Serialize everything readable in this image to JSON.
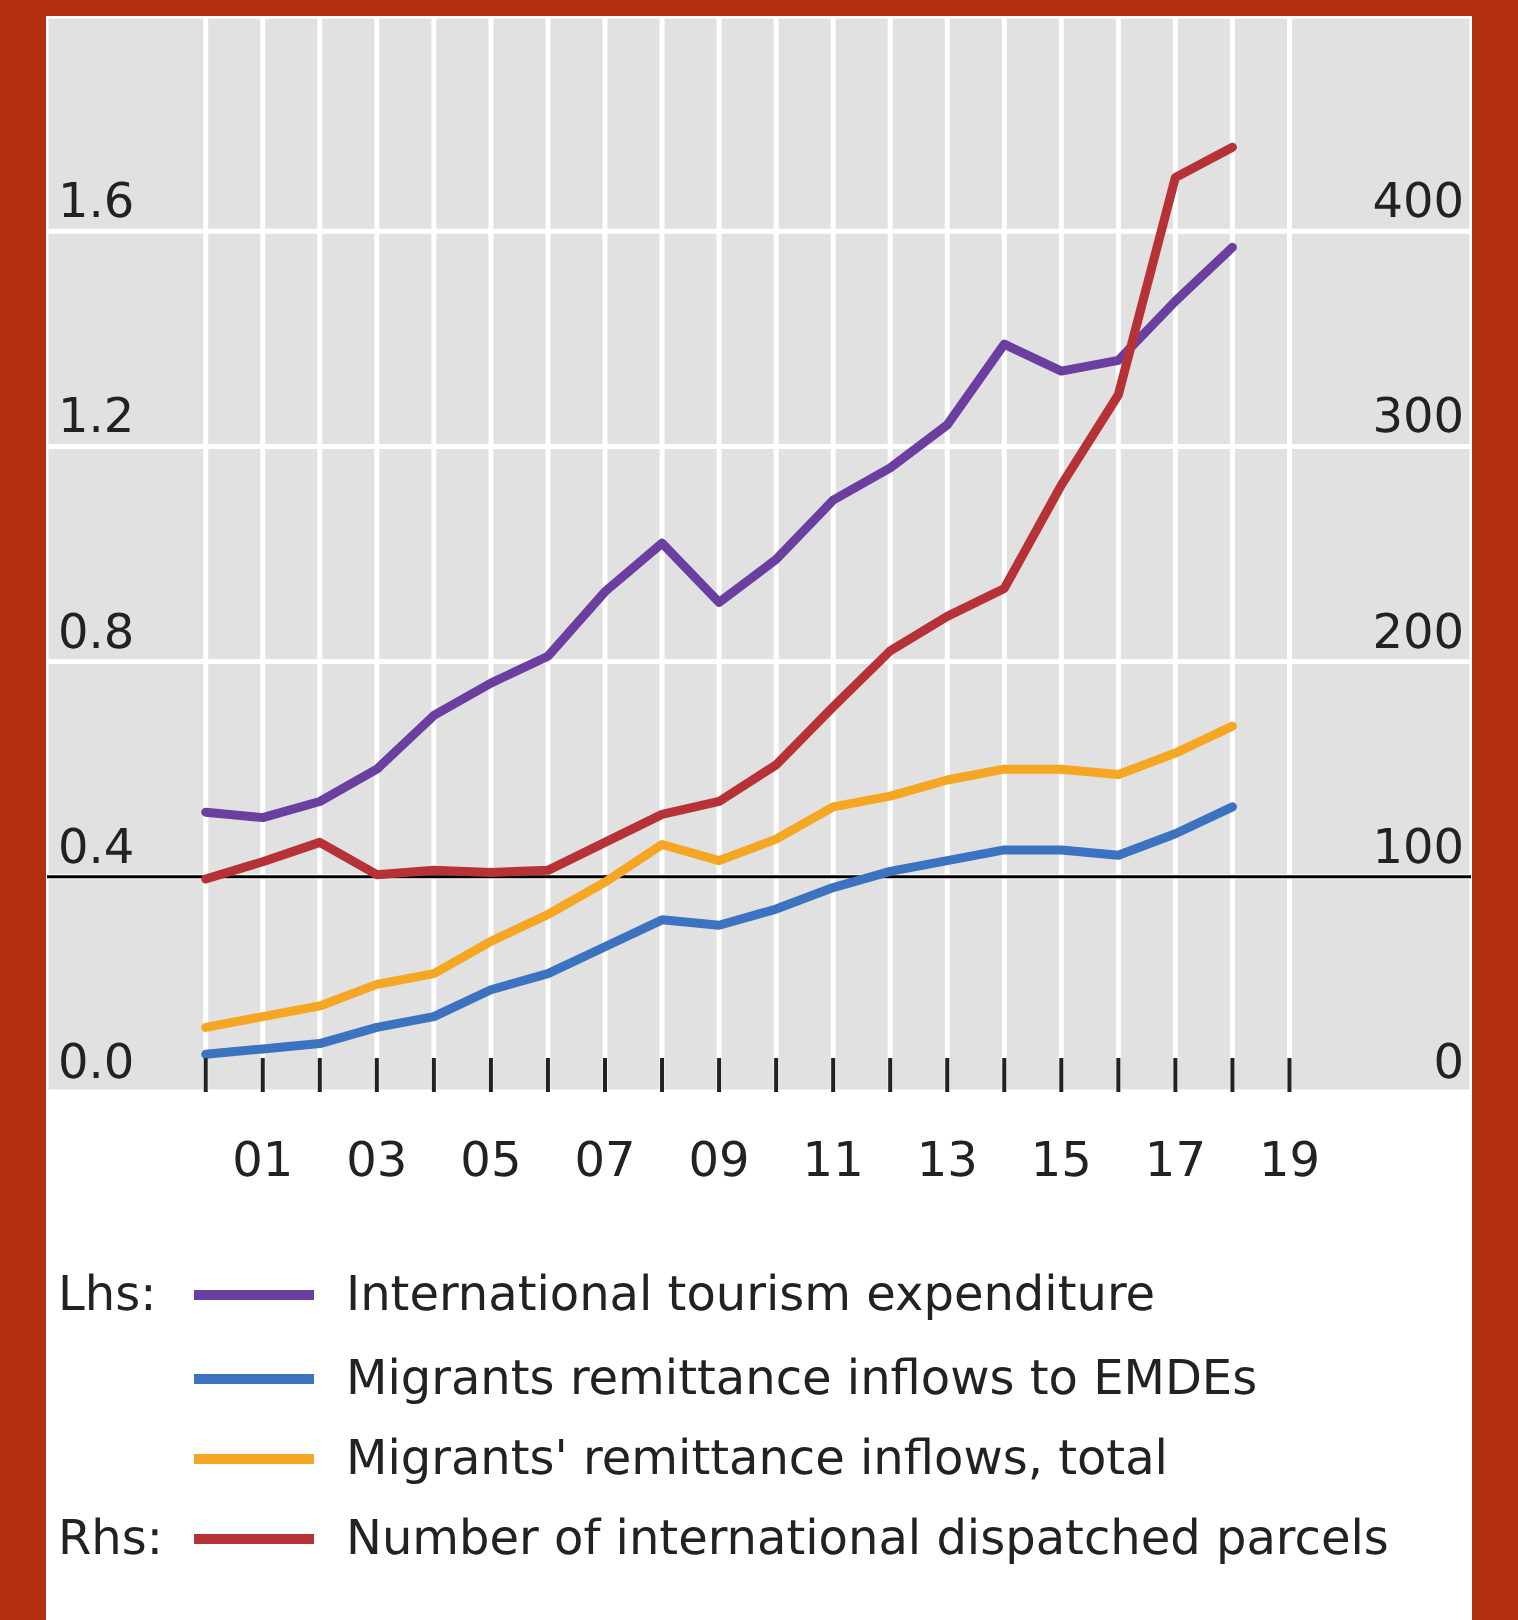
{
  "chart_data": {
    "type": "line",
    "x": [
      2000,
      2001,
      2002,
      2003,
      2004,
      2005,
      2006,
      2007,
      2008,
      2009,
      2010,
      2011,
      2012,
      2013,
      2014,
      2015,
      2016,
      2017,
      2018
    ],
    "xlim": [
      1997.2,
      2022.2
    ],
    "xticks": [
      {
        "value": 2000,
        "label": null
      },
      {
        "value": 2001,
        "label": "01"
      },
      {
        "value": 2002,
        "label": null
      },
      {
        "value": 2003,
        "label": "03"
      },
      {
        "value": 2004,
        "label": null
      },
      {
        "value": 2005,
        "label": "05"
      },
      {
        "value": 2006,
        "label": null
      },
      {
        "value": 2007,
        "label": "07"
      },
      {
        "value": 2008,
        "label": null
      },
      {
        "value": 2009,
        "label": "09"
      },
      {
        "value": 2010,
        "label": null
      },
      {
        "value": 2011,
        "label": "11"
      },
      {
        "value": 2012,
        "label": null
      },
      {
        "value": 2013,
        "label": "13"
      },
      {
        "value": 2014,
        "label": null
      },
      {
        "value": 2015,
        "label": "15"
      },
      {
        "value": 2016,
        "label": null
      },
      {
        "value": 2017,
        "label": "17"
      },
      {
        "value": 2018,
        "label": null
      },
      {
        "value": 2019,
        "label": "19"
      }
    ],
    "ylim": [
      0,
      2
    ],
    "yticks": [
      {
        "value": 0,
        "label": "0.0"
      },
      {
        "value": 0.4,
        "label": "0.4"
      },
      {
        "value": 0.8,
        "label": "0.8"
      },
      {
        "value": 1.2,
        "label": "1.2"
      },
      {
        "value": 1.6,
        "label": "1.6"
      }
    ],
    "y2lim": [
      0,
      500
    ],
    "y2ticks": [
      0,
      100,
      200,
      300,
      400
    ],
    "grid": true,
    "legend": "bottom",
    "line_style": "solid",
    "ref_lines": [
      {
        "axis": "y2",
        "value": 100,
        "color": "#000000"
      }
    ],
    "annotations": [
      "Lhs:",
      "Rhs:"
    ],
    "series": [
      {
        "name": "International tourism expenditure",
        "color": "#6b3fa0",
        "axis": "y",
        "values": [
          0.52,
          0.51,
          0.54,
          0.6,
          0.7,
          0.76,
          0.81,
          0.93,
          1.02,
          0.91,
          0.99,
          1.1,
          1.16,
          1.24,
          1.39,
          1.34,
          1.36,
          1.47,
          1.57
        ]
      },
      {
        "name": "Migrants remittance inflows to EMDEs",
        "color": "#3b73c0",
        "axis": "y",
        "values": [
          0.07,
          0.08,
          0.09,
          0.12,
          0.14,
          0.19,
          0.22,
          0.27,
          0.32,
          0.31,
          0.34,
          0.38,
          0.41,
          0.43,
          0.45,
          0.45,
          0.44,
          0.48,
          0.53
        ]
      },
      {
        "name": "Migrants' remittance inflows, total",
        "color": "#f5a623",
        "axis": "y",
        "values": [
          0.12,
          0.14,
          0.16,
          0.2,
          0.22,
          0.28,
          0.33,
          0.39,
          0.46,
          0.43,
          0.47,
          0.53,
          0.55,
          0.58,
          0.6,
          0.6,
          0.59,
          0.63,
          0.68
        ]
      },
      {
        "name": "Number of international dispatched parcels",
        "color": "#b73236",
        "axis": "y2",
        "values": [
          99,
          107,
          116,
          101,
          103,
          102,
          103,
          116,
          129,
          135,
          152,
          179,
          205,
          221,
          234,
          282,
          324,
          425,
          439
        ]
      }
    ]
  }
}
